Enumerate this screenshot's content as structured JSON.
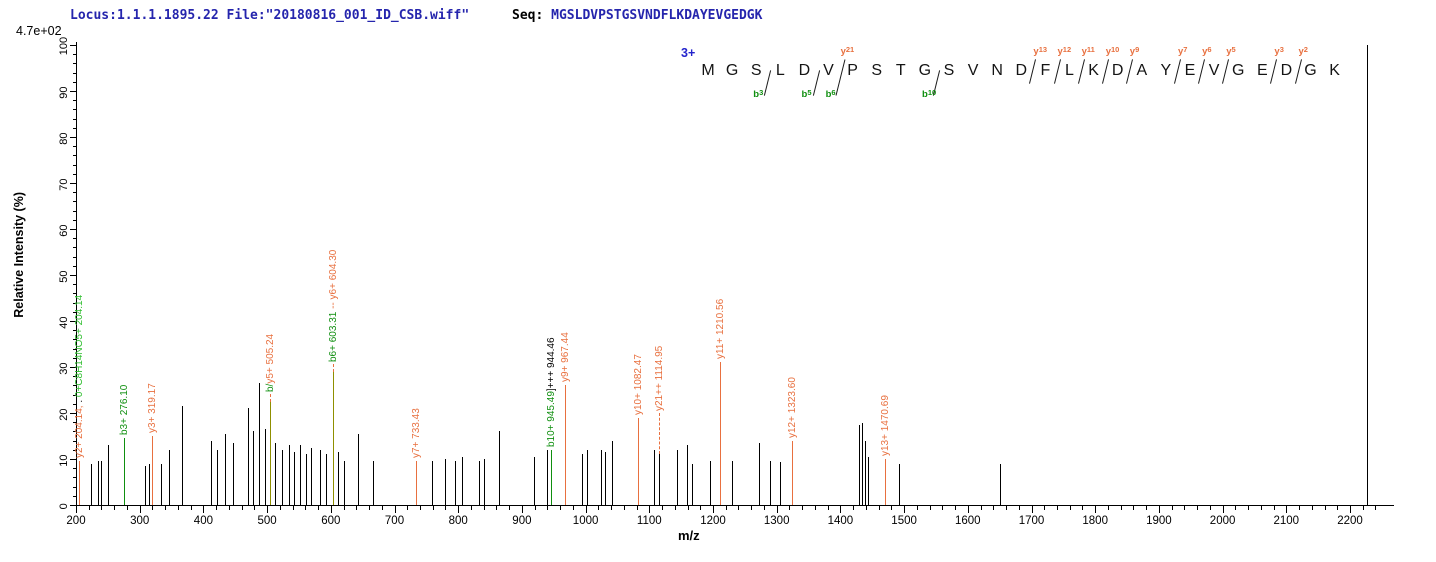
{
  "header": {
    "locus_file": "Locus:1.1.1.1895.22 File:\"20180816_001_ID_CSB.wiff\"",
    "seq_label": "Seq: ",
    "sequence": "MGSLDVPSTGSVNDFLKDAYEVGEDGK"
  },
  "chart_data": {
    "type": "bar",
    "subtype": "ms2_fragmentation_mass_spectrum",
    "title": "",
    "xlabel": "m/z",
    "ylabel": "Relative  Intensity (%)",
    "xlim": [
      200,
      2260
    ],
    "ylim": [
      0,
      100
    ],
    "x_ticks": [
      200,
      300,
      400,
      500,
      600,
      700,
      800,
      900,
      1000,
      1100,
      1200,
      1300,
      1400,
      1500,
      1600,
      1700,
      1800,
      1900,
      2000,
      2100,
      2200
    ],
    "x_minor_step": 20,
    "y_ticks": [
      0,
      10,
      20,
      30,
      40,
      50,
      60,
      70,
      80,
      90,
      100
    ],
    "y_minor_step": 2,
    "grid": false,
    "legend": "none",
    "base_peak_intensity_label": "4.7e+02",
    "unlabeled_peaks": [
      [
        224,
        9
      ],
      [
        235,
        9.5
      ],
      [
        239,
        9.5
      ],
      [
        250,
        13
      ],
      [
        308,
        8.5
      ],
      [
        315,
        9
      ],
      [
        334,
        9
      ],
      [
        346,
        12
      ],
      [
        366,
        21.5
      ],
      [
        412,
        14
      ],
      [
        421,
        12
      ],
      [
        434,
        15.5
      ],
      [
        446,
        13.5
      ],
      [
        470,
        21
      ],
      [
        478,
        16
      ],
      [
        487,
        26.5
      ],
      [
        497,
        16.5
      ],
      [
        513,
        13.5
      ],
      [
        523,
        12
      ],
      [
        534,
        13
      ],
      [
        542,
        11.5
      ],
      [
        552,
        13
      ],
      [
        561,
        11
      ],
      [
        569,
        12.5
      ],
      [
        583,
        12
      ],
      [
        592,
        11
      ],
      [
        612,
        11.5
      ],
      [
        620,
        9.5
      ],
      [
        643,
        15.5
      ],
      [
        666,
        9.5
      ],
      [
        759,
        9.5
      ],
      [
        779,
        10
      ],
      [
        795,
        9.5
      ],
      [
        806,
        10.5
      ],
      [
        833,
        9.5
      ],
      [
        840,
        10
      ],
      [
        864,
        16
      ],
      [
        919,
        10.5
      ],
      [
        940,
        12
      ],
      [
        994,
        11
      ],
      [
        1002,
        12
      ],
      [
        1024,
        12
      ],
      [
        1030,
        11.5
      ],
      [
        1041,
        14
      ],
      [
        1107,
        12
      ],
      [
        1143,
        12
      ],
      [
        1159,
        13
      ],
      [
        1167,
        9
      ],
      [
        1196,
        9.5
      ],
      [
        1230,
        9.5
      ],
      [
        1272,
        13.5
      ],
      [
        1290,
        9.5
      ],
      [
        1305,
        9.3
      ],
      [
        1429,
        17.3
      ],
      [
        1434,
        17.8
      ],
      [
        1438,
        14
      ],
      [
        1443,
        10.5
      ],
      [
        1492,
        9
      ],
      [
        1650,
        9
      ],
      [
        2227,
        100
      ]
    ],
    "annotated_peaks": [
      {
        "mz": 204.14,
        "intensity": 9.5,
        "line": "y",
        "segments": [
          {
            "text": "y2+ 204.14,",
            "color": "y"
          },
          {
            "text": " .",
            "color": "black"
          },
          {
            "text": " 0+C8H14NO5+ 204.14",
            "color": "bright_green"
          }
        ]
      },
      {
        "mz": 276.1,
        "intensity": 14.5,
        "line": "b",
        "segments": [
          {
            "text": "b3+ 276.10",
            "color": "b"
          }
        ]
      },
      {
        "mz": 319.17,
        "intensity": 15,
        "line": "y",
        "segments": [
          {
            "text": "y3+ 319.17",
            "color": "y"
          }
        ]
      },
      {
        "mz": 505.24,
        "intensity": 22.5,
        "line": "olive",
        "connector": 8,
        "segments": [
          {
            "text": "b/",
            "color": "b"
          },
          {
            "text": "y5+ 505.24",
            "color": "y"
          }
        ]
      },
      {
        "mz": 603.31,
        "intensity": 29,
        "line": "olive",
        "connector": 8,
        "segments": [
          {
            "text": "b6+ 603.31",
            "color": "b"
          },
          {
            "text": " -- ",
            "color": "y"
          },
          {
            "text": "y6+ 604.30",
            "color": "y"
          }
        ]
      },
      {
        "mz": 733.43,
        "intensity": 9.5,
        "line": "y",
        "segments": [
          {
            "text": "y7+ 733.43",
            "color": "y"
          }
        ]
      },
      {
        "mz": 945.49,
        "intensity": 12,
        "line": "b",
        "segments": [
          {
            "text": "b10+ 945.49",
            "color": "b"
          },
          {
            "text": "]+++ 944.46",
            "color": "black"
          }
        ]
      },
      {
        "mz": 967.44,
        "intensity": 26,
        "line": "y",
        "segments": [
          {
            "text": "y9+ 967.44",
            "color": "y"
          }
        ]
      },
      {
        "mz": 1082.47,
        "intensity": 19,
        "line": "y",
        "segments": [
          {
            "text": "y10+ 1082.47",
            "color": "y"
          }
        ]
      },
      {
        "mz": 1114.95,
        "intensity": 11,
        "line": "dash",
        "dash_from": 11,
        "dash_to": 20,
        "segments": [
          {
            "text": "y21++ 1114.95",
            "color": "y"
          }
        ]
      },
      {
        "mz": 1210.56,
        "intensity": 31,
        "line": "y",
        "segments": [
          {
            "text": "y11+ 1210.56",
            "color": "y"
          }
        ]
      },
      {
        "mz": 1323.6,
        "intensity": 14,
        "line": "y",
        "segments": [
          {
            "text": "y12+ 1323.60",
            "color": "y"
          }
        ]
      },
      {
        "mz": 1470.69,
        "intensity": 10,
        "line": "y",
        "segments": [
          {
            "text": "y13+ 1470.69",
            "color": "y"
          }
        ]
      }
    ]
  },
  "ladder": {
    "charge_label": "3+",
    "residues": [
      "M",
      "G",
      "S",
      "L",
      "D",
      "V",
      "P",
      "S",
      "T",
      "G",
      "S",
      "V",
      "N",
      "D",
      "F",
      "L",
      "K",
      "D",
      "A",
      "Y",
      "E",
      "V",
      "G",
      "E",
      "D",
      "G",
      "K"
    ],
    "y_marks": [
      {
        "ion": "y",
        "num": "21",
        "before": 6
      },
      {
        "ion": "y",
        "num": "13",
        "before": 14
      },
      {
        "ion": "y",
        "num": "12",
        "before": 15
      },
      {
        "ion": "y",
        "num": "11",
        "before": 16
      },
      {
        "ion": "y",
        "num": "10",
        "before": 17
      },
      {
        "ion": "y",
        "num": "9",
        "before": 18
      },
      {
        "ion": "y",
        "num": "7",
        "before": 20
      },
      {
        "ion": "y",
        "num": "6",
        "before": 21
      },
      {
        "ion": "y",
        "num": "5",
        "before": 22
      },
      {
        "ion": "y",
        "num": "3",
        "before": 24
      },
      {
        "ion": "y",
        "num": "2",
        "before": 25
      }
    ],
    "b_marks": [
      {
        "ion": "b",
        "num": "3",
        "after": 2
      },
      {
        "ion": "b",
        "num": "5",
        "after": 4
      },
      {
        "ion": "b",
        "num": "6",
        "after": 5
      },
      {
        "ion": "b",
        "num": "10",
        "after": 9
      }
    ]
  },
  "colors": {
    "y": "#e8703f",
    "b": "#0f8f0f",
    "bright_green": "#2fbe2f",
    "olive": "#8f8f00",
    "black": "#000000",
    "header_blue": "#2525ad",
    "charge_blue": "#2424cc"
  }
}
